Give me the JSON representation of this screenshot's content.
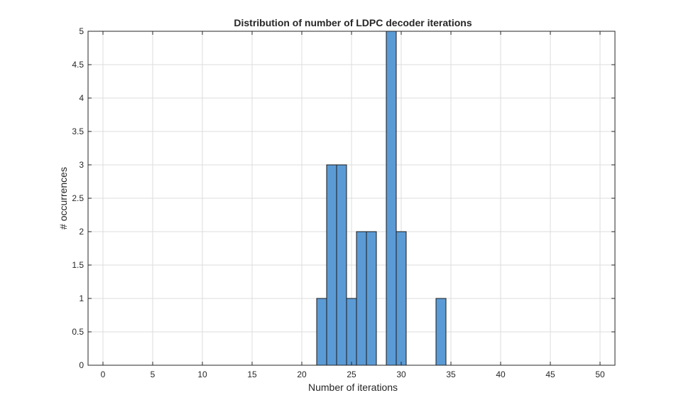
{
  "chart_data": {
    "type": "bar",
    "title": "Distribution of number of LDPC decoder iterations",
    "xlabel": "Number of iterations",
    "ylabel": "# occurrences",
    "xlim": [
      -1.5,
      51.5
    ],
    "ylim": [
      0,
      5
    ],
    "xticks": [
      0,
      5,
      10,
      15,
      20,
      25,
      30,
      35,
      40,
      45,
      50
    ],
    "yticks": [
      0,
      0.5,
      1,
      1.5,
      2,
      2.5,
      3,
      3.5,
      4,
      4.5,
      5
    ],
    "grid": true,
    "bin_width": 1,
    "bins": [
      {
        "x": 22,
        "value": 1
      },
      {
        "x": 23,
        "value": 3
      },
      {
        "x": 24,
        "value": 3
      },
      {
        "x": 25,
        "value": 1
      },
      {
        "x": 26,
        "value": 2
      },
      {
        "x": 27,
        "value": 2
      },
      {
        "x": 28,
        "value": 0
      },
      {
        "x": 29,
        "value": 5
      },
      {
        "x": 30,
        "value": 2
      },
      {
        "x": 31,
        "value": 0
      },
      {
        "x": 32,
        "value": 0
      },
      {
        "x": 33,
        "value": 0
      },
      {
        "x": 34,
        "value": 1
      }
    ],
    "colors": {
      "bar_fill": "#5b9bd5",
      "bar_edge": "#1a1a1a",
      "grid": "#dcdcdc",
      "axis": "#262626"
    }
  }
}
